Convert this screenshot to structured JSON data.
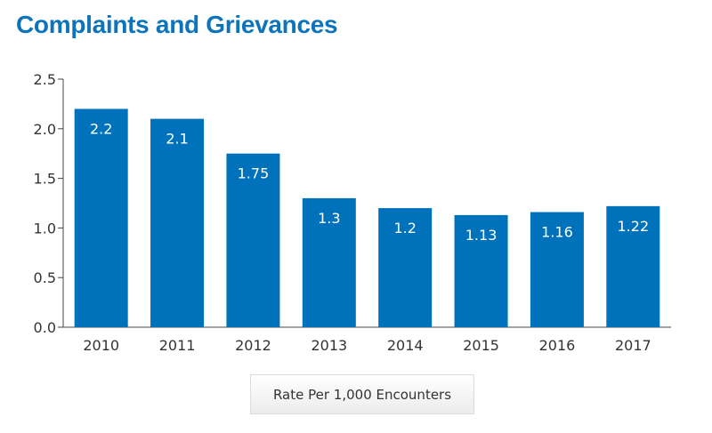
{
  "page": {
    "title": "Complaints and Grievances"
  },
  "colors": {
    "bar": "#0072bc",
    "title": "#0d74bb",
    "axis": "#444444",
    "label": "#ffffff"
  },
  "chart_data": {
    "type": "bar",
    "title": "Complaints and Grievances",
    "categories": [
      "2010",
      "2011",
      "2012",
      "2013",
      "2014",
      "2015",
      "2016",
      "2017"
    ],
    "series": [
      {
        "name": "Rate Per 1,000 Encounters",
        "values": [
          2.2,
          2.1,
          1.75,
          1.3,
          1.2,
          1.13,
          1.16,
          1.22
        ]
      }
    ],
    "ylim": [
      0,
      2.5
    ],
    "yticks": [
      "0.0",
      "0.5",
      "1.0",
      "1.5",
      "2.0",
      "2.5"
    ],
    "data_labels": [
      "2.2",
      "2.1",
      "1.75",
      "1.3",
      "1.2",
      "1.13",
      "1.16",
      "1.22"
    ],
    "xlabel": "",
    "ylabel": "",
    "grid": false,
    "legend_position": "bottom-center"
  }
}
